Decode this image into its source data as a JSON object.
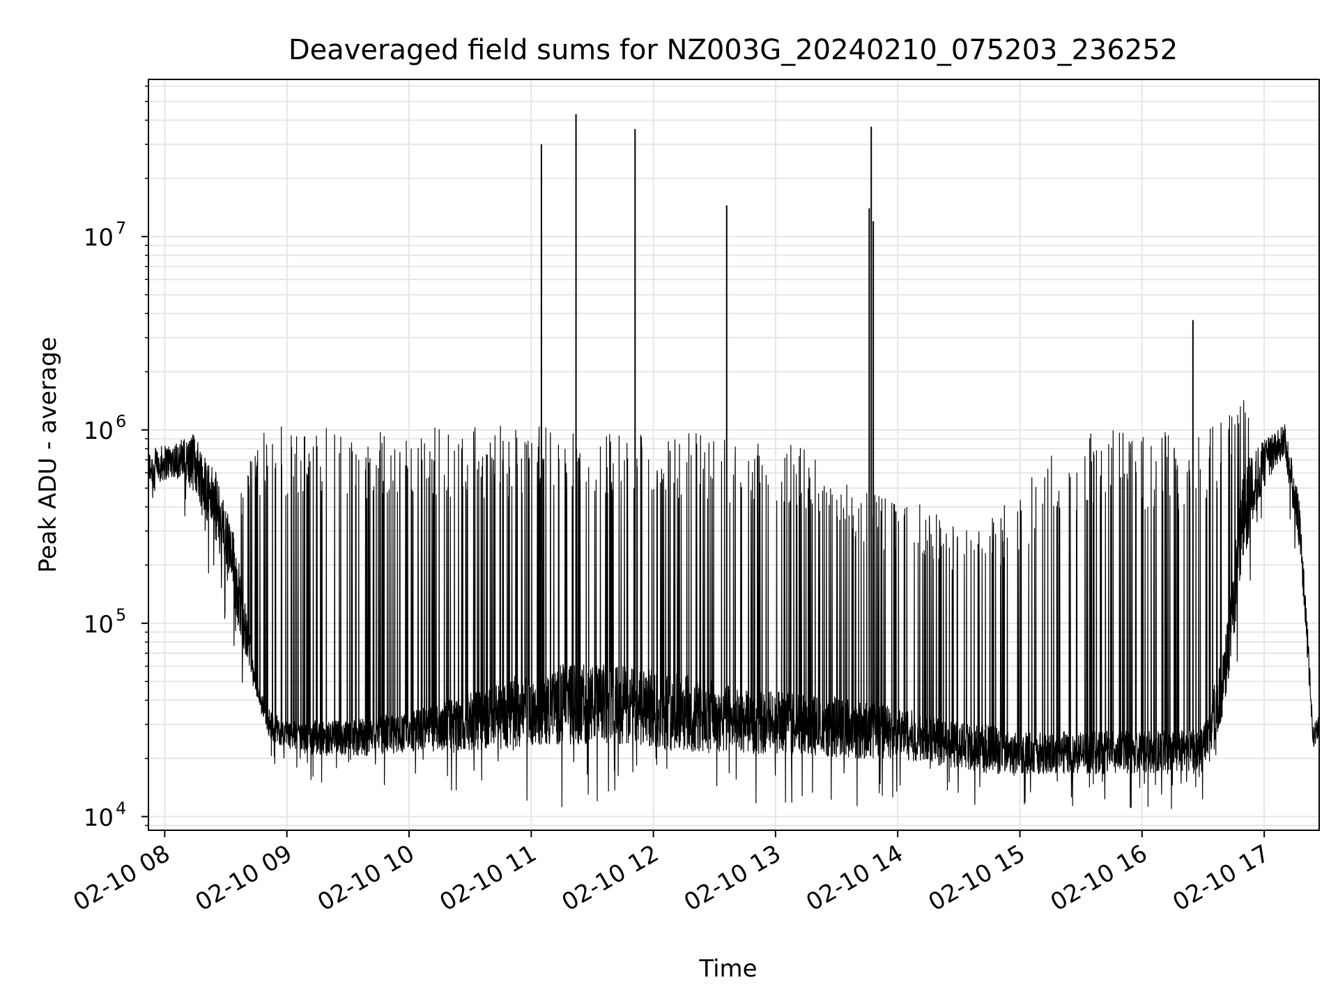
{
  "chart_data": {
    "type": "line",
    "title": "Deaveraged field sums for NZ003G_20240210_075203_236252",
    "xlabel": "Time",
    "ylabel": "Peak ADU - average",
    "x_tick_labels": [
      "02-10 08",
      "02-10 09",
      "02-10 10",
      "02-10 11",
      "02-10 12",
      "02-10 13",
      "02-10 14",
      "02-10 15",
      "02-10 16",
      "02-10 17"
    ],
    "x_ticks": [
      "2024-02-10T08:00",
      "2024-02-10T09:00",
      "2024-02-10T10:00",
      "2024-02-10T11:00",
      "2024-02-10T12:00",
      "2024-02-10T13:00",
      "2024-02-10T14:00",
      "2024-02-10T15:00",
      "2024-02-10T16:00",
      "2024-02-10T17:00"
    ],
    "xlim": [
      "2024-02-10T07:52",
      "2024-02-10T17:27"
    ],
    "y_scale": "log",
    "y_tick_labels": [
      "10",
      "10",
      "10",
      "10"
    ],
    "y_tick_exponents": [
      "4",
      "5",
      "6",
      "7"
    ],
    "y_ticks": [
      10000,
      100000,
      1000000,
      10000000
    ],
    "ylim": [
      8500,
      65000000
    ],
    "grid": true,
    "line_color": "#000000",
    "grid_color": "#e6e6e6",
    "series": [
      {
        "x": [
          "2024-02-10T07:52",
          "2024-02-10T08:05",
          "2024-02-10T08:15",
          "2024-02-10T08:25",
          "2024-02-10T08:35",
          "2024-02-10T08:45",
          "2024-02-10T08:52",
          "2024-02-10T09:00",
          "2024-02-10T09:15",
          "2024-02-10T09:30",
          "2024-02-10T09:45",
          "2024-02-10T10:00",
          "2024-02-10T10:15",
          "2024-02-10T10:30",
          "2024-02-10T10:45",
          "2024-02-10T11:00",
          "2024-02-10T11:15",
          "2024-02-10T11:30",
          "2024-02-10T11:45",
          "2024-02-10T12:00",
          "2024-02-10T12:15",
          "2024-02-10T12:30",
          "2024-02-10T12:45",
          "2024-02-10T13:00",
          "2024-02-10T13:15",
          "2024-02-10T13:30",
          "2024-02-10T13:45",
          "2024-02-10T14:00",
          "2024-02-10T14:15",
          "2024-02-10T14:30",
          "2024-02-10T14:45",
          "2024-02-10T15:00",
          "2024-02-10T15:15",
          "2024-02-10T15:30",
          "2024-02-10T15:45",
          "2024-02-10T16:00",
          "2024-02-10T16:15",
          "2024-02-10T16:30",
          "2024-02-10T16:40",
          "2024-02-10T16:50",
          "2024-02-10T17:00",
          "2024-02-10T17:10",
          "2024-02-10T17:18",
          "2024-02-10T17:24",
          "2024-02-10T17:27"
        ],
        "base": [
          650000,
          720000,
          700000,
          420000,
          180000,
          45000,
          30000,
          27000,
          26000,
          26000,
          27000,
          28000,
          30000,
          32000,
          35000,
          38000,
          40000,
          40000,
          40000,
          38000,
          36000,
          34000,
          32000,
          32000,
          31000,
          30000,
          29000,
          28000,
          26000,
          24000,
          23000,
          22000,
          22000,
          22000,
          22000,
          22000,
          22000,
          23000,
          50000,
          400000,
          700000,
          900000,
          300000,
          26000,
          30000
        ],
        "high": [
          900000,
          1000000,
          1000000,
          600000,
          400000,
          1000000,
          1050000,
          1050000,
          1050000,
          1050000,
          1050000,
          1050000,
          1050000,
          1050000,
          1050000,
          1050000,
          1050000,
          1000000,
          1000000,
          1000000,
          1000000,
          950000,
          900000,
          900000,
          800000,
          600000,
          500000,
          450000,
          400000,
          300000,
          350000,
          500000,
          800000,
          1000000,
          1000000,
          1000000,
          1000000,
          1000000,
          1100000,
          1500000,
          1200000,
          1000000,
          300000,
          26000,
          30000
        ],
        "low": [
          500000,
          550000,
          450000,
          250000,
          100000,
          40000,
          24000,
          22000,
          20000,
          20000,
          20000,
          21000,
          21000,
          21000,
          21000,
          22000,
          22000,
          22000,
          22000,
          21000,
          20000,
          20000,
          20000,
          20000,
          20000,
          19000,
          19000,
          19000,
          18000,
          17000,
          16000,
          16000,
          16000,
          16000,
          16000,
          16000,
          16000,
          17000,
          30000,
          200000,
          500000,
          700000,
          200000,
          22000,
          26000
        ]
      }
    ],
    "spikes": [
      {
        "x": "2024-02-10T11:05",
        "y": 30000000
      },
      {
        "x": "2024-02-10T11:22",
        "y": 43000000
      },
      {
        "x": "2024-02-10T11:51",
        "y": 36000000
      },
      {
        "x": "2024-02-10T12:36",
        "y": 14500000
      },
      {
        "x": "2024-02-10T13:46",
        "y": 14000000
      },
      {
        "x": "2024-02-10T13:47",
        "y": 37000000
      },
      {
        "x": "2024-02-10T13:48",
        "y": 12000000
      },
      {
        "x": "2024-02-10T16:25",
        "y": 3700000
      }
    ]
  }
}
